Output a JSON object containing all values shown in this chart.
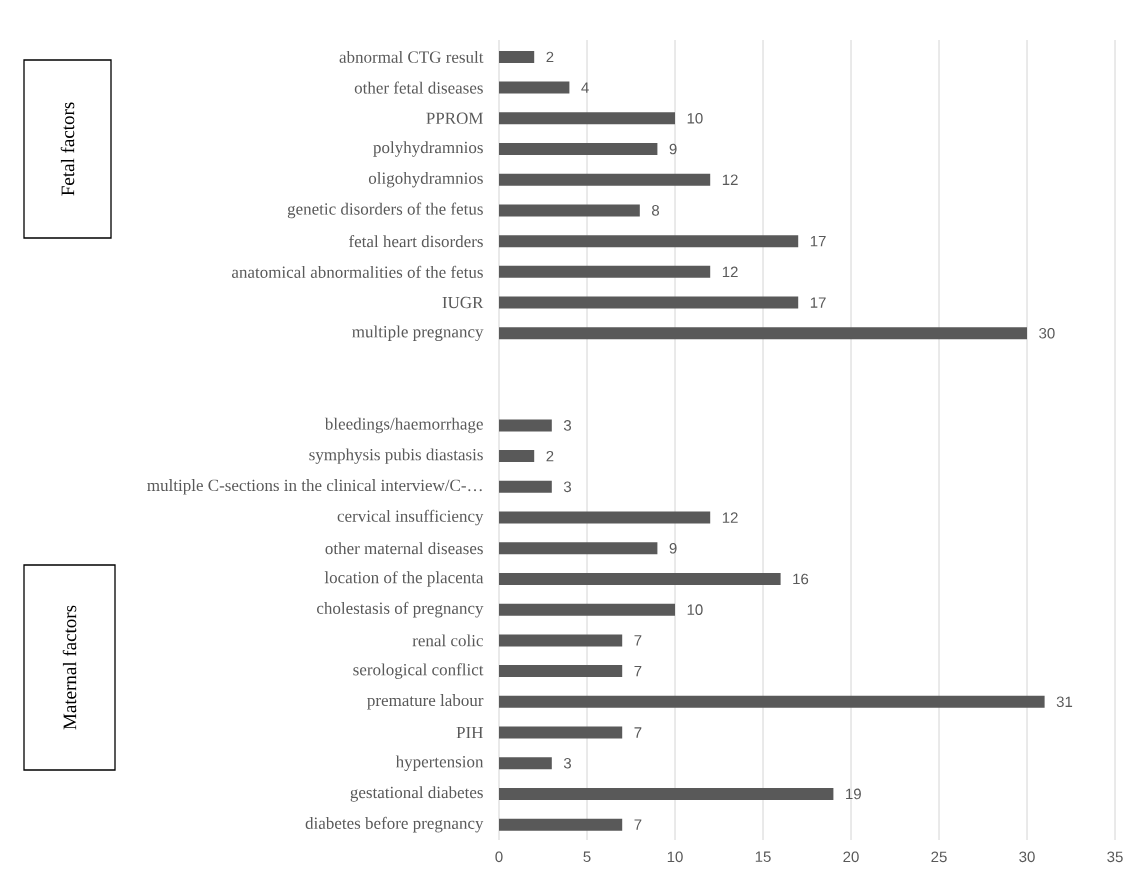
{
  "chart_data": {
    "type": "bar",
    "orientation": "horizontal",
    "categories": [
      "abnormal CTG result",
      "other fetal diseases",
      "PPROM",
      "polyhydramnios",
      "oligohydramnios",
      "genetic disorders of the fetus",
      "fetal heart disorders",
      "anatomical abnormalities of the fetus",
      "IUGR",
      "multiple pregnancy",
      null,
      null,
      "bleedings/haemorrhage",
      "symphysis pubis diastasis",
      "multiple C-sections in the clinical interview/C-…",
      "cervical insufficiency",
      "other maternal diseases",
      "location of the placenta",
      "cholestasis of pregnancy",
      "renal colic",
      "serological conflict",
      "premature labour",
      "PIH",
      "hypertension",
      "gestational diabetes",
      "diabetes before pregnancy"
    ],
    "values": [
      2,
      4,
      10,
      9,
      12,
      8,
      17,
      12,
      17,
      30,
      null,
      null,
      3,
      2,
      3,
      12,
      9,
      16,
      10,
      7,
      7,
      31,
      7,
      3,
      19,
      7
    ],
    "color": "#595959",
    "xlim": [
      0,
      35
    ],
    "xticks": [
      0,
      5,
      10,
      15,
      20,
      25,
      30,
      35
    ],
    "grid": "x",
    "data_labels": true,
    "annotations": [
      "Fetal factors",
      "Maternal factors"
    ]
  }
}
